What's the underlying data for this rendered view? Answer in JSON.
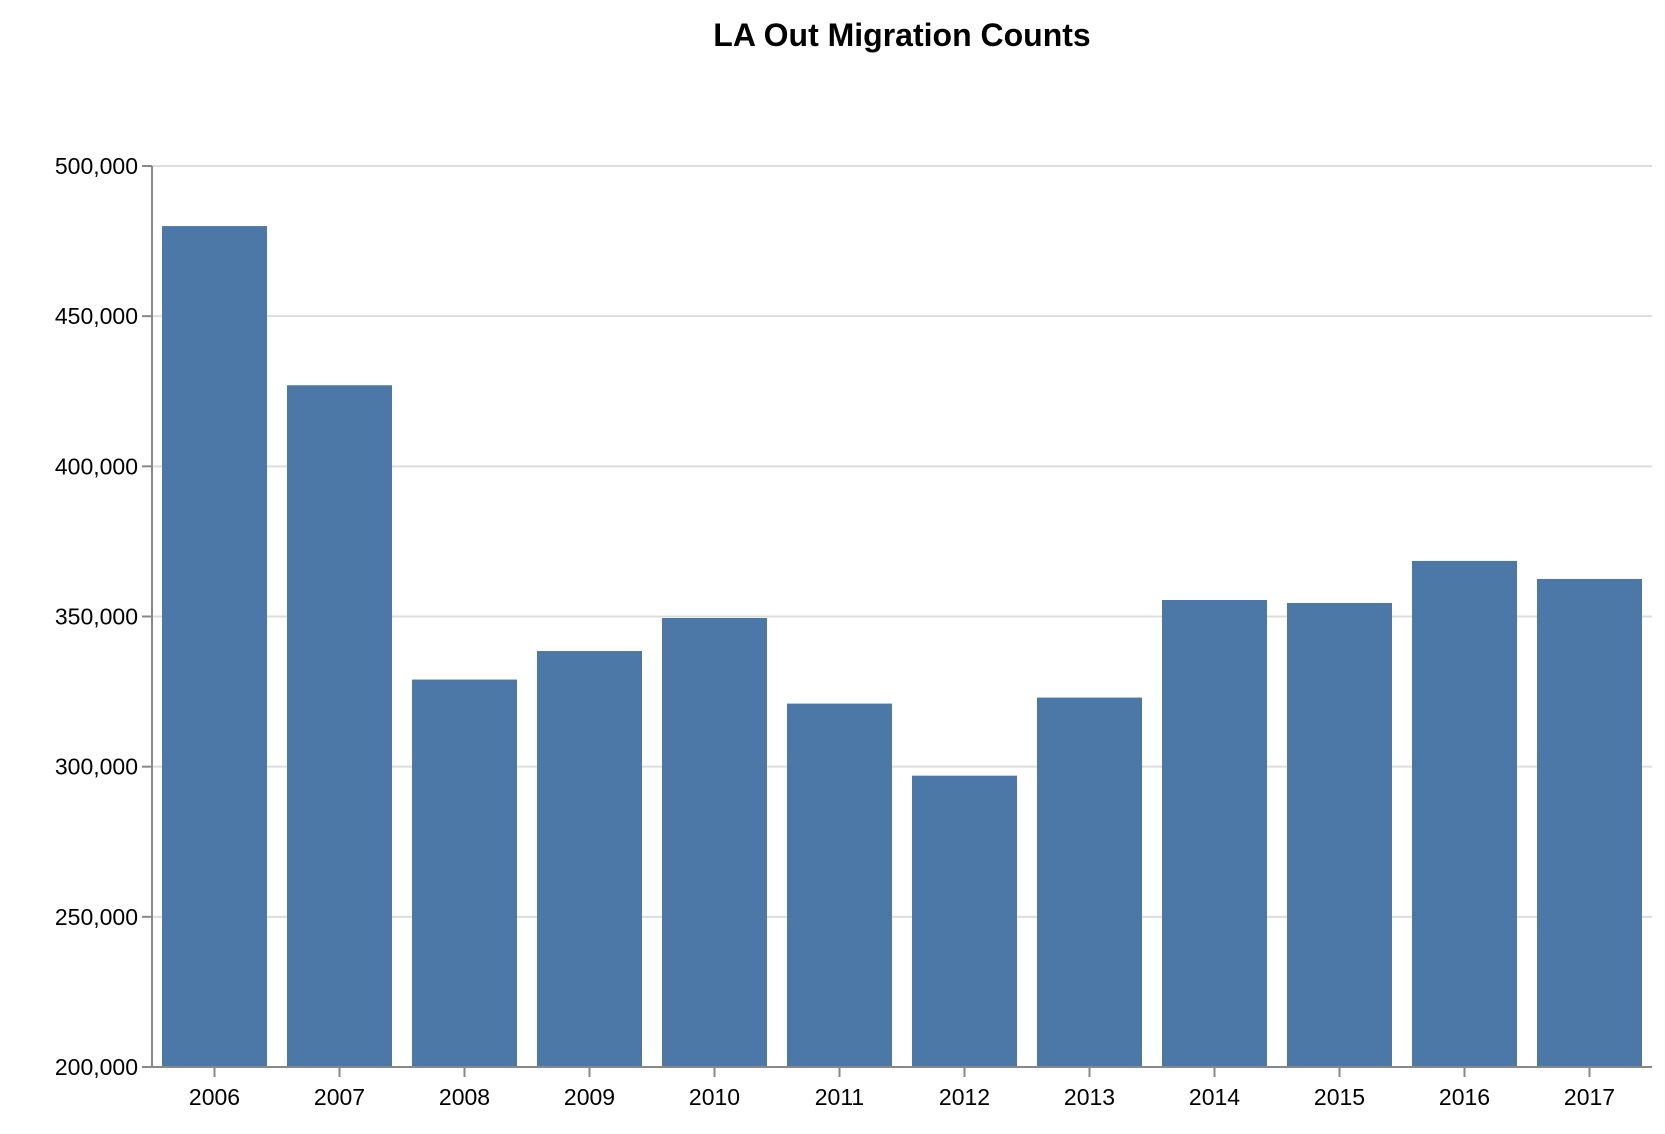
{
  "chart_data": {
    "type": "bar",
    "title": "LA Out Migration Counts",
    "xlabel": "",
    "ylabel": "",
    "categories": [
      "2006",
      "2007",
      "2008",
      "2009",
      "2010",
      "2011",
      "2012",
      "2013",
      "2014",
      "2015",
      "2016",
      "2017"
    ],
    "values": [
      480000,
      427000,
      329000,
      338500,
      349500,
      321000,
      297000,
      323000,
      355500,
      354500,
      368500,
      362500
    ],
    "ylim": [
      200000,
      500000
    ],
    "yticks": [
      200000,
      250000,
      300000,
      350000,
      400000,
      450000,
      500000
    ],
    "ytick_labels": [
      "200,000",
      "250,000",
      "300,000",
      "350,000",
      "400,000",
      "450,000",
      "500,000"
    ],
    "grid": true,
    "legend": "none",
    "bar_color": "#4c78a8"
  }
}
